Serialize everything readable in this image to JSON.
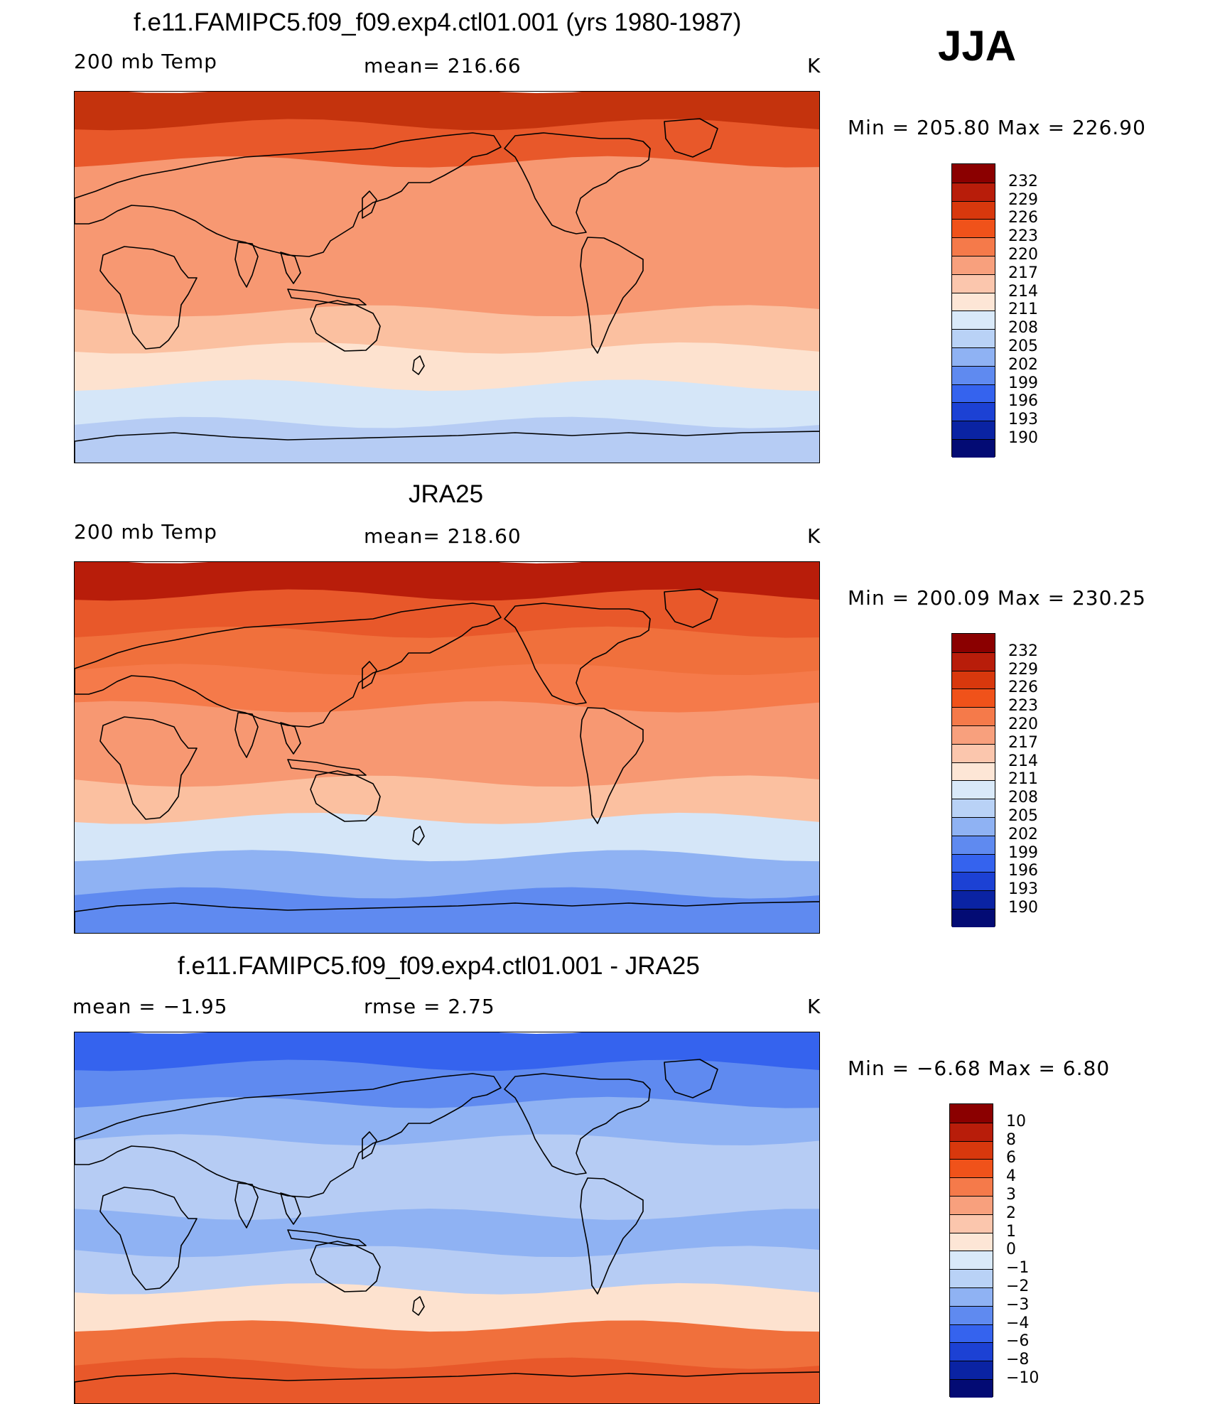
{
  "season": "JJA",
  "panels": [
    {
      "title": "f.e11.FAMIPC5.f09_f09.exp4.ctl01.001 (yrs 1980-1987)",
      "left_label": "200 mb Temp",
      "center_label": "mean= 216.66",
      "units": "K",
      "minmax": "Min = 205.80 Max = 226.90",
      "legend_ticks": [
        "232",
        "229",
        "226",
        "223",
        "220",
        "217",
        "214",
        "211",
        "208",
        "205",
        "202",
        "199",
        "196",
        "193",
        "190"
      ],
      "legend_colors": [
        "#8b0000",
        "#b81d0a",
        "#d8380d",
        "#f0521a",
        "#f57a4a",
        "#f8a07d",
        "#fbc6ad",
        "#fde6d6",
        "#d9e9f9",
        "#b9d2f6",
        "#8fb2f3",
        "#5f8af0",
        "#3563ee",
        "#1c41d4",
        "#0a23a3",
        "#030b74"
      ],
      "bands": [
        "#c4330d",
        "#e8582a",
        "#f79872",
        "#f79872",
        "#f79872",
        "#f79872",
        "#fbc0a0",
        "#fde2cf",
        "#d5e6f8",
        "#b6ccf4"
      ]
    },
    {
      "title": "JRA25",
      "left_label": "200 mb Temp",
      "center_label": "mean= 218.60",
      "units": "K",
      "minmax": "Min = 200.09 Max = 230.25",
      "legend_ticks": [
        "232",
        "229",
        "226",
        "223",
        "220",
        "217",
        "214",
        "211",
        "208",
        "205",
        "202",
        "199",
        "196",
        "193",
        "190"
      ],
      "legend_colors": [
        "#8b0000",
        "#b81d0a",
        "#d8380d",
        "#f0521a",
        "#f57a4a",
        "#f8a07d",
        "#fbc6ad",
        "#fde6d6",
        "#d9e9f9",
        "#b9d2f6",
        "#8fb2f3",
        "#5f8af0",
        "#3563ee",
        "#1c41d4",
        "#0a23a3",
        "#030b74"
      ],
      "bands": [
        "#b81d0a",
        "#e8582a",
        "#f0703c",
        "#f57a4a",
        "#f79872",
        "#f79872",
        "#fbc0a0",
        "#d5e6f8",
        "#8fb2f3",
        "#5f8af0"
      ]
    },
    {
      "title": "f.e11.FAMIPC5.f09_f09.exp4.ctl01.001 - JRA25",
      "left_label": "mean =  −1.95",
      "center_label": "rmse =   2.75",
      "units": "K",
      "minmax": "Min =  −6.68 Max =   6.80",
      "legend_ticks": [
        "10",
        "8",
        "6",
        "4",
        "3",
        "2",
        "1",
        "0",
        "−1",
        "−2",
        "−3",
        "−4",
        "−6",
        "−8",
        "−10"
      ],
      "legend_colors": [
        "#8b0000",
        "#b81d0a",
        "#d8380d",
        "#f0521a",
        "#f57a4a",
        "#f8a07d",
        "#fbc6ad",
        "#fde6d6",
        "#d9e9f9",
        "#b9d2f6",
        "#8fb2f3",
        "#5f8af0",
        "#3563ee",
        "#1c41d4",
        "#0a23a3",
        "#030b74"
      ],
      "bands": [
        "#3563ee",
        "#5f8af0",
        "#8fb2f3",
        "#b6ccf4",
        "#b6ccf4",
        "#8fb2f3",
        "#b6ccf4",
        "#fde2cf",
        "#f0703c",
        "#e8582a"
      ]
    }
  ]
}
